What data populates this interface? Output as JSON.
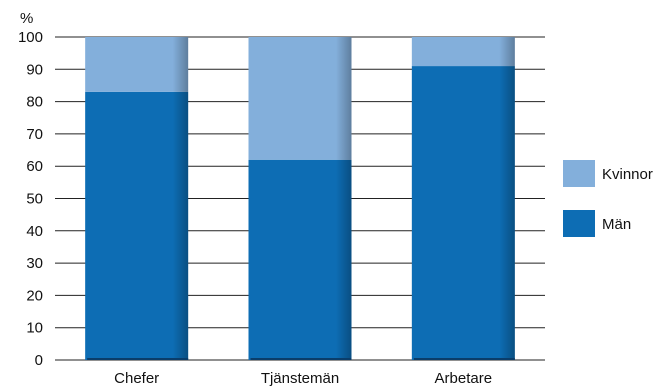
{
  "chart_data": {
    "type": "bar",
    "stacked": true,
    "categories": [
      "Chefer",
      "Tjänstemän",
      "Arbetare"
    ],
    "series": [
      {
        "name": "Män",
        "values": [
          83,
          62,
          91
        ],
        "color": "#0d6db4"
      },
      {
        "name": "Kvinnor",
        "values": [
          17,
          38,
          9
        ],
        "color": "#83afdb"
      }
    ],
    "ylabel": "%",
    "ylim": [
      0,
      100
    ],
    "yticks": [
      0,
      10,
      20,
      30,
      40,
      50,
      60,
      70,
      80,
      90,
      100
    ],
    "grid": true,
    "legend": "right",
    "legend_order": [
      "Kvinnor",
      "Män"
    ]
  }
}
